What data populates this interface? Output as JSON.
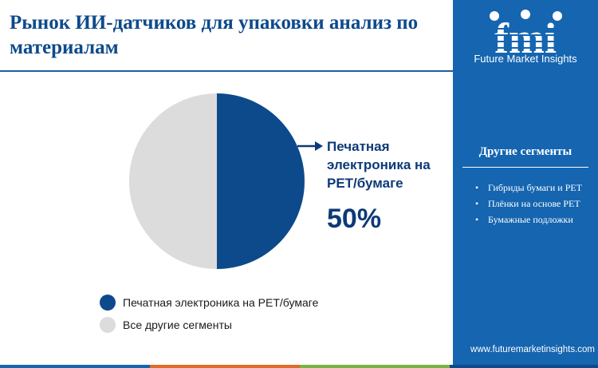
{
  "header": {
    "title": "Рынок ИИ-датчиков для упаковки анализ по материалам"
  },
  "brand": {
    "logo_text": "fmi",
    "name": "Future Market Insights",
    "website": "www.futuremarketinsights.com"
  },
  "sidebar": {
    "heading": "Другие сегменты",
    "items": [
      {
        "label": "Гибриды бумаги и PET"
      },
      {
        "label": "Плёнки на основе PET"
      },
      {
        "label": "Бумажные подложки"
      }
    ]
  },
  "callout": {
    "label": "Печатная электроника на PET/бумаге",
    "value": "50%"
  },
  "colors": {
    "primary": "#0d4a8c",
    "other": "#dcdcdc",
    "sidebar": "#1565b0",
    "bottom_bar": [
      "#1565b0",
      "#e06c2a",
      "#7bb241",
      "#0d4a8c"
    ]
  },
  "chart_data": {
    "type": "pie",
    "slices": [
      {
        "name": "Печатная электроника на PET/бумаге",
        "value": 50,
        "color": "#0d4a8c"
      },
      {
        "name": "Все другие сегменты",
        "value": 50,
        "color": "#dcdcdc"
      }
    ],
    "legend": [
      "Печатная электроника на PET/бумаге",
      "Все другие сегменты"
    ],
    "legend_position": "bottom"
  }
}
